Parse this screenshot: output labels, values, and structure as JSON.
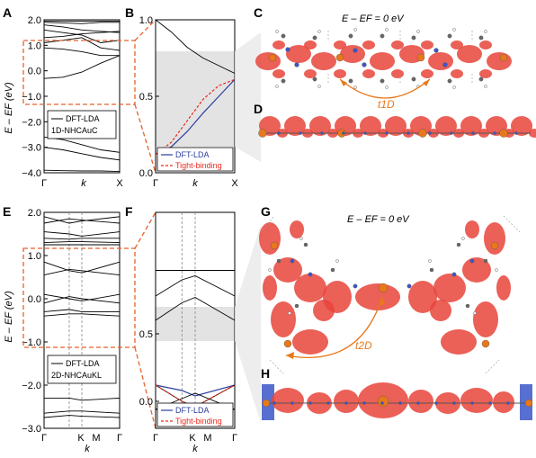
{
  "panels": {
    "A": {
      "label": "A",
      "ylabel": "E – EF (eV)",
      "yticks": [
        2.0,
        1.0,
        0.0,
        -1.0,
        -2.0,
        -3.0,
        -4.0
      ],
      "ytick_labels": [
        "2.0",
        "1.0",
        "0.0",
        "−1.0",
        "−2.0",
        "−3.0",
        "−4.0"
      ],
      "xticks": [
        "Γ",
        "k",
        "X"
      ],
      "legend": [
        "DFT-LDA",
        "1D-NHCAuC"
      ]
    },
    "B": {
      "label": "B",
      "yticks": [
        1.0,
        0.5,
        0.0
      ],
      "ytick_labels": [
        "1.0",
        "0.5",
        "0.0"
      ],
      "xticks": [
        "Γ",
        "k",
        "X"
      ],
      "legend": [
        "DFT-LDA",
        "Tight-binding"
      ]
    },
    "C": {
      "label": "C",
      "energy_label": "E – EF = 0 eV",
      "hopping_label": "t1D"
    },
    "D": {
      "label": "D"
    },
    "E": {
      "label": "E",
      "ylabel": "E – EF (eV)",
      "yticks": [
        2.0,
        1.0,
        0.0,
        -1.0,
        -2.0,
        -3.0
      ],
      "ytick_labels": [
        "2.0",
        "1.0",
        "0.0",
        "−1.0",
        "−2.0",
        "−3.0"
      ],
      "xticks": [
        "Γ",
        "K",
        "M",
        "Γ"
      ],
      "xlabel": "k",
      "legend": [
        "DFT-LDA",
        "2D-NHCAuKL"
      ]
    },
    "F": {
      "label": "F",
      "yticks": [
        0.5,
        0.0
      ],
      "ytick_labels": [
        "0.5",
        "0.0"
      ],
      "xticks": [
        "Γ",
        "K",
        "M",
        "Γ"
      ],
      "xlabel": "k",
      "legend": [
        "DFT-LDA",
        "Tight-binding"
      ]
    },
    "G": {
      "label": "G",
      "energy_label": "E – EF = 0 eV",
      "hopping_label": "t2D"
    },
    "H": {
      "label": "H"
    }
  },
  "colors": {
    "dft": "#2c3e9e",
    "tb": "#e8291c",
    "dashed_box": "#e8622a",
    "orbital": "#e8443a",
    "orbital_light": "#f3a39e",
    "gold_atom": "#e8781a",
    "shade": "#e3e3e3"
  },
  "chart_data": [
    {
      "type": "line",
      "panel": "A",
      "ylim": [
        -4.0,
        2.0
      ],
      "x": [
        0,
        0.25,
        0.5,
        0.75,
        1.0
      ],
      "series": [
        {
          "values": [
            1.95,
            1.95,
            1.95,
            1.95,
            1.95
          ]
        },
        {
          "values": [
            1.9,
            1.88,
            1.85,
            1.9,
            1.9
          ]
        },
        {
          "values": [
            1.8,
            1.72,
            1.6,
            1.55,
            1.5
          ]
        },
        {
          "values": [
            1.6,
            1.5,
            1.4,
            1.1,
            1.2
          ]
        },
        {
          "values": [
            1.3,
            1.35,
            1.45,
            1.5,
            1.55
          ]
        },
        {
          "values": [
            1.1,
            1.2,
            1.3,
            0.9,
            0.8
          ]
        },
        {
          "values": [
            0.9,
            0.85,
            0.75,
            0.6,
            0.6
          ]
        },
        {
          "values": [
            -0.3,
            -0.25,
            -0.05,
            0.3,
            0.6
          ]
        },
        {
          "values": [
            -2.6,
            -2.7,
            -2.9,
            -3.1,
            -3.2
          ]
        },
        {
          "values": [
            -3.0,
            -3.1,
            -3.25,
            -3.4,
            -3.5
          ]
        },
        {
          "values": [
            -3.9,
            -3.92,
            -3.93,
            -3.93,
            -3.95
          ]
        }
      ]
    },
    {
      "type": "line",
      "panel": "B",
      "ylim": [
        0.0,
        1.0
      ],
      "x": [
        0,
        0.2,
        0.4,
        0.6,
        0.8,
        1.0
      ],
      "series": [
        {
          "name": "DFT-LDA",
          "values": [
            0.12,
            0.17,
            0.27,
            0.39,
            0.5,
            0.61
          ]
        },
        {
          "name": "Tight-binding",
          "values": [
            0.12,
            0.2,
            0.34,
            0.48,
            0.57,
            0.61
          ]
        },
        {
          "values": [
            1.0,
            0.92,
            0.82,
            0.75,
            0.7,
            0.65
          ]
        }
      ]
    },
    {
      "type": "line",
      "panel": "E",
      "ylim": [
        -3.0,
        2.0
      ],
      "x": [
        0,
        0.333,
        0.5,
        1.0
      ],
      "series": [
        {
          "values": [
            1.9,
            1.75,
            1.8,
            1.9
          ]
        },
        {
          "values": [
            1.75,
            1.85,
            1.82,
            1.75
          ]
        },
        {
          "values": [
            1.55,
            1.5,
            1.45,
            1.55
          ]
        },
        {
          "values": [
            1.4,
            1.38,
            1.4,
            1.4
          ]
        },
        {
          "values": [
            1.3,
            1.32,
            1.32,
            1.3
          ]
        },
        {
          "values": [
            1.25,
            1.25,
            1.25,
            1.25
          ]
        },
        {
          "values": [
            0.85,
            0.65,
            0.6,
            0.85
          ]
        },
        {
          "values": [
            0.55,
            0.68,
            0.65,
            0.55
          ]
        },
        {
          "values": [
            0.1,
            0.0,
            -0.05,
            0.1
          ]
        },
        {
          "values": [
            -0.1,
            0.05,
            0.0,
            -0.1
          ]
        },
        {
          "values": [
            -0.3,
            -0.25,
            -0.3,
            -0.3
          ]
        },
        {
          "values": [
            -0.4,
            -0.35,
            -0.35,
            -0.4
          ]
        },
        {
          "values": [
            -2.3,
            -2.3,
            -2.35,
            -2.3
          ]
        },
        {
          "values": [
            -2.65,
            -2.6,
            -2.6,
            -2.65
          ]
        },
        {
          "values": [
            -2.75,
            -2.7,
            -2.72,
            -2.75
          ]
        }
      ]
    },
    {
      "type": "line",
      "panel": "F",
      "ylim": [
        -0.2,
        1.4
      ],
      "x": [
        0,
        0.333,
        0.5,
        1.0
      ],
      "series": [
        {
          "values": [
            0.97,
            0.97,
            0.97,
            0.97
          ]
        },
        {
          "values": [
            0.78,
            0.9,
            0.93,
            0.78
          ]
        },
        {
          "values": [
            0.6,
            0.73,
            0.77,
            0.6
          ]
        },
        {
          "name": "DFT-LDA",
          "values": [
            0.12,
            0.08,
            0.04,
            0.12
          ]
        },
        {
          "values": [
            0.12,
            0.0,
            -0.04,
            0.12
          ]
        },
        {
          "values": [
            -0.06,
            0.02,
            0.06,
            -0.06
          ]
        },
        {
          "values": [
            -0.06,
            -0.06,
            -0.06,
            -0.06
          ]
        },
        {
          "name": "Tight-binding",
          "values": [
            0.12,
            0.0,
            -0.04,
            0.12
          ]
        }
      ]
    }
  ]
}
